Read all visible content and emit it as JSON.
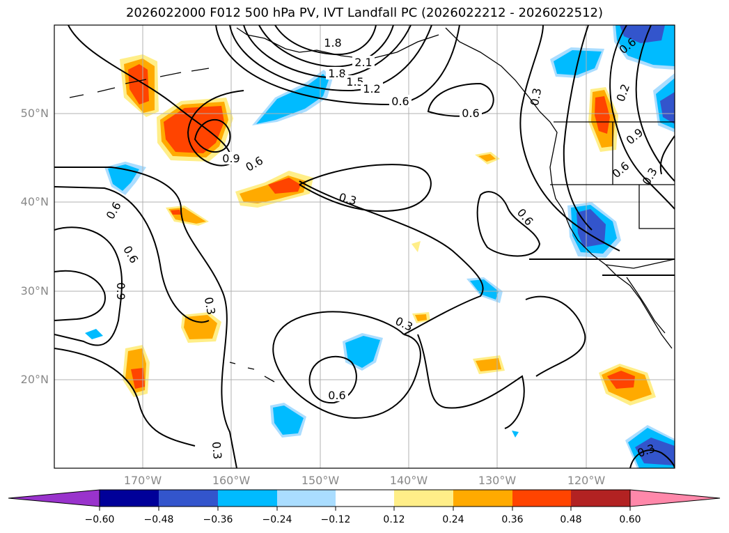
{
  "title": "2026022000 F012 500 hPa PV, IVT Landfall PC (2026022212 - 2026022512)",
  "axes": {
    "lat_labels": [
      "50°N",
      "40°N",
      "30°N",
      "20°N"
    ],
    "lon_labels": [
      "170°W",
      "160°W",
      "150°W",
      "140°W",
      "130°W",
      "120°W"
    ],
    "lon_range": [
      -180,
      -110
    ],
    "lat_range": [
      10,
      60
    ],
    "grid": true
  },
  "colorbar": {
    "ticks": [
      "−0.60",
      "−0.48",
      "−0.36",
      "−0.24",
      "−0.12",
      "0.12",
      "0.24",
      "0.36",
      "0.48",
      "0.60"
    ],
    "colors": [
      "#9933cc",
      "#000099",
      "#3355cc",
      "#00bbff",
      "#aaddff",
      "#ffffff",
      "#ffee88",
      "#ffaa00",
      "#ff4400",
      "#b22222",
      "#ff88aa"
    ],
    "extend": "both"
  },
  "contour_labels": [
    "1.8",
    "2.1",
    "1.8",
    "1.5",
    "1.2",
    "0.6",
    "0.6",
    "0.3",
    "0.2",
    "0.6",
    "0.9",
    "0.6",
    "0.3",
    "0.9",
    "0.6",
    "0.3",
    "0.6",
    "0.6",
    "0.6",
    "0.9",
    "0.3",
    "0.3",
    "0.6",
    "0.3",
    "0.3"
  ]
}
